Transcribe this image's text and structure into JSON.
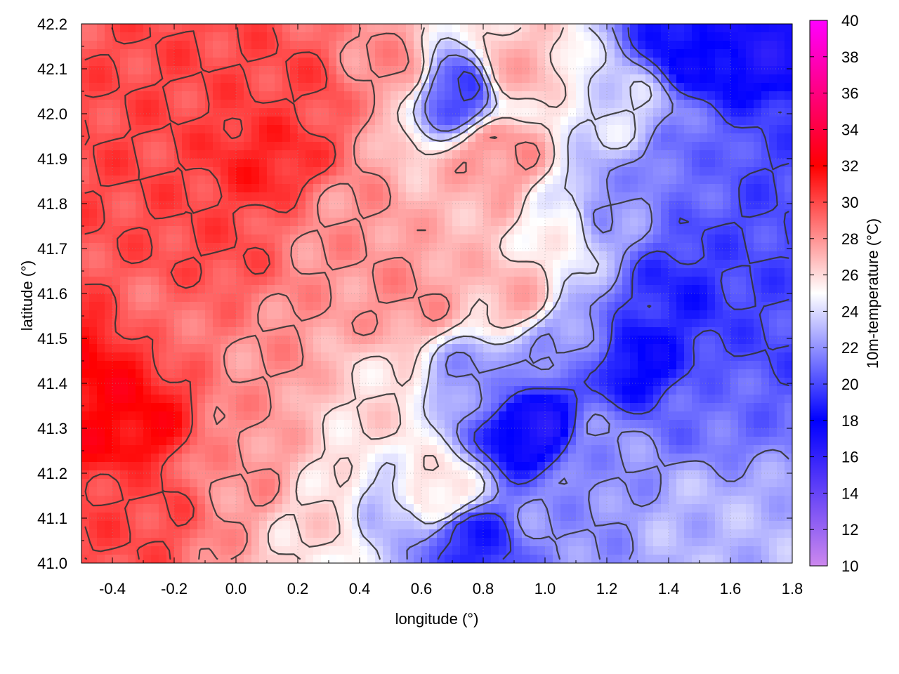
{
  "chart_data": {
    "type": "heatmap",
    "title": "",
    "xlabel": "longitude (°)",
    "ylabel": "latitude (°)",
    "colorbar_label": "10m-temperature (°C)",
    "xlim": [
      -0.5,
      1.8
    ],
    "ylim": [
      41.0,
      42.2
    ],
    "x_ticks": [
      -0.4,
      -0.2,
      0.0,
      0.2,
      0.4,
      0.6,
      0.8,
      1.0,
      1.2,
      1.4,
      1.6,
      1.8
    ],
    "x_tick_labels": [
      "-0.4",
      "-0.2",
      "0.0",
      "0.2",
      "0.4",
      "0.6",
      "0.8",
      "1.0",
      "1.2",
      "1.4",
      "1.6",
      "1.8"
    ],
    "y_ticks": [
      41.0,
      41.1,
      41.2,
      41.3,
      41.4,
      41.5,
      41.6,
      41.7,
      41.8,
      41.9,
      42.0,
      42.1,
      42.2
    ],
    "y_tick_labels": [
      "41.0",
      "41.1",
      "41.2",
      "41.3",
      "41.4",
      "41.5",
      "41.6",
      "41.7",
      "41.8",
      "41.9",
      "42.0",
      "42.1",
      "42.2"
    ],
    "colorbar_range": [
      10,
      40
    ],
    "colorbar_ticks": [
      10,
      12,
      14,
      16,
      18,
      20,
      22,
      24,
      26,
      28,
      30,
      32,
      34,
      36,
      38,
      40
    ],
    "colorbar_tick_labels": [
      "10",
      "12",
      "14",
      "16",
      "18",
      "20",
      "22",
      "24",
      "26",
      "28",
      "30",
      "32",
      "34",
      "36",
      "38",
      "40"
    ],
    "colormap": [
      {
        "value": 10,
        "color": "#cc88ee"
      },
      {
        "value": 18,
        "color": "#0000ff"
      },
      {
        "value": 25,
        "color": "#ffffff"
      },
      {
        "value": 32,
        "color": "#ff0000"
      },
      {
        "value": 40,
        "color": "#ff00ff"
      }
    ],
    "grid": true,
    "contours": true,
    "contour_color": "#333333",
    "field_regions": [
      {
        "lon": -0.35,
        "lat": 41.3,
        "temp": 32
      },
      {
        "lon": -0.45,
        "lat": 41.4,
        "temp": 32
      },
      {
        "lon": -0.3,
        "lat": 41.15,
        "temp": 30
      },
      {
        "lon": -0.2,
        "lat": 41.55,
        "temp": 29
      },
      {
        "lon": -0.3,
        "lat": 41.9,
        "temp": 30
      },
      {
        "lon": -0.1,
        "lat": 42.1,
        "temp": 30
      },
      {
        "lon": 0.1,
        "lat": 41.9,
        "temp": 31
      },
      {
        "lon": -0.1,
        "lat": 41.7,
        "temp": 30
      },
      {
        "lon": 0.2,
        "lat": 42.05,
        "temp": 30
      },
      {
        "lon": 0.1,
        "lat": 41.45,
        "temp": 28
      },
      {
        "lon": 0.0,
        "lat": 41.2,
        "temp": 28
      },
      {
        "lon": 0.35,
        "lat": 41.75,
        "temp": 28
      },
      {
        "lon": 0.55,
        "lat": 41.6,
        "temp": 28
      },
      {
        "lon": 0.5,
        "lat": 42.1,
        "temp": 28
      },
      {
        "lon": 0.3,
        "lat": 41.1,
        "temp": 26
      },
      {
        "lon": 0.45,
        "lat": 41.35,
        "temp": 26
      },
      {
        "lon": 0.75,
        "lat": 41.8,
        "temp": 27
      },
      {
        "lon": 0.9,
        "lat": 42.1,
        "temp": 27
      },
      {
        "lon": 0.85,
        "lat": 41.9,
        "temp": 28
      },
      {
        "lon": 0.72,
        "lat": 42.05,
        "temp": 20
      },
      {
        "lon": 0.9,
        "lat": 41.6,
        "temp": 27
      },
      {
        "lon": 1.05,
        "lat": 41.75,
        "temp": 25
      },
      {
        "lon": 0.5,
        "lat": 41.1,
        "temp": 23
      },
      {
        "lon": 0.65,
        "lat": 41.15,
        "temp": 26
      },
      {
        "lon": 0.75,
        "lat": 41.05,
        "temp": 19
      },
      {
        "lon": 0.95,
        "lat": 41.3,
        "temp": 17
      },
      {
        "lon": 0.8,
        "lat": 41.4,
        "temp": 22
      },
      {
        "lon": 1.05,
        "lat": 41.1,
        "temp": 22
      },
      {
        "lon": 1.2,
        "lat": 41.25,
        "temp": 22
      },
      {
        "lon": 1.1,
        "lat": 41.5,
        "temp": 22
      },
      {
        "lon": 1.3,
        "lat": 41.45,
        "temp": 18
      },
      {
        "lon": 1.45,
        "lat": 41.6,
        "temp": 19
      },
      {
        "lon": 1.2,
        "lat": 41.8,
        "temp": 22
      },
      {
        "lon": 1.25,
        "lat": 42.0,
        "temp": 24
      },
      {
        "lon": 1.45,
        "lat": 41.9,
        "temp": 21
      },
      {
        "lon": 1.6,
        "lat": 41.7,
        "temp": 20
      },
      {
        "lon": 1.55,
        "lat": 41.35,
        "temp": 21
      },
      {
        "lon": 1.7,
        "lat": 41.5,
        "temp": 20
      },
      {
        "lon": 1.7,
        "lat": 42.15,
        "temp": 17
      },
      {
        "lon": 1.5,
        "lat": 42.15,
        "temp": 18
      },
      {
        "lon": 1.75,
        "lat": 41.9,
        "temp": 20
      },
      {
        "lon": 1.5,
        "lat": 41.1,
        "temp": 23
      },
      {
        "lon": 1.7,
        "lat": 41.05,
        "temp": 23
      }
    ]
  }
}
